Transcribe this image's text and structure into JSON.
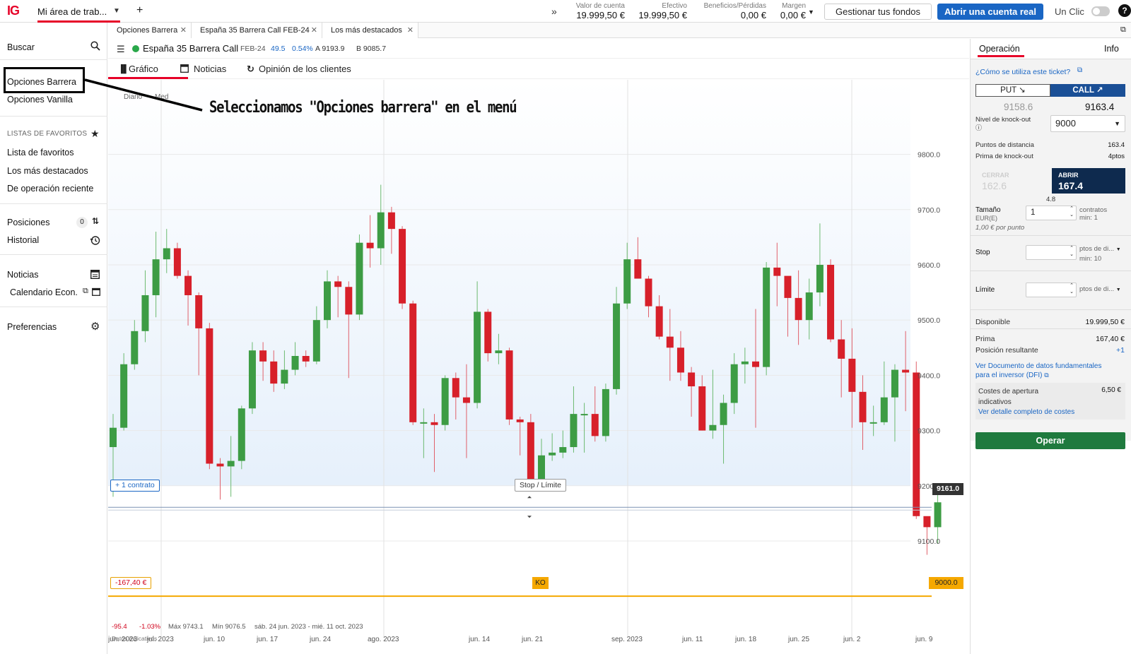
{
  "topbar": {
    "logo": "IG",
    "workspace": "Mi área de trab...",
    "stats": [
      {
        "label": "Valor de cuenta",
        "value": "19.999,50 €"
      },
      {
        "label": "Efectivo",
        "value": "19.999,50 €"
      },
      {
        "label": "Beneficios/Pérdidas",
        "value": "0,00 €"
      },
      {
        "label": "Margen",
        "value": "0,00 €"
      }
    ],
    "manage_funds": "Gestionar tus fondos",
    "open_account": "Abrir una cuenta real",
    "one_click": "Un Clic",
    "help": "?"
  },
  "sidebar": {
    "search": "Buscar",
    "barrier": "Opciones Barrera",
    "vanilla": "Opciones Vanilla",
    "favorites_header": "LISTAS DE FAVORITOS",
    "fav_list": "Lista de favoritos",
    "top": "Los más destacados",
    "recent": "De operación reciente",
    "positions": "Posiciones",
    "positions_count": "0",
    "history": "Historial",
    "news": "Noticias",
    "calendar": "Calendario Econ.",
    "prefs": "Preferencias"
  },
  "tabs": [
    {
      "label": "Opciones Barrera"
    },
    {
      "label": "España 35 Barrera Call  FEB-24"
    },
    {
      "label": "Los más destacados"
    }
  ],
  "instrument": {
    "name": "España 35 Barrera Call",
    "expiry": "FEB-24",
    "change": "49.5",
    "change_pct": "0.54%",
    "ask": "A 9193.9",
    "bid": "B 9085.7"
  },
  "subtabs": {
    "chart": "Gráfico",
    "news": "Noticias",
    "sentiment": "Opinión de los clientes"
  },
  "annotation": "Seleccionamos \"Opciones barrera\" en el menú",
  "chart_meta": {
    "interval": "Diario",
    "interval2": "Med",
    "contract_tag": "+ 1 contrato",
    "stop_limit": "Stop / Límite",
    "last_price": "9161.0",
    "ko_pnl": "-167,40 €",
    "ko": "KO",
    "ko_level": "9000.0",
    "foot_change": "-95.4",
    "foot_pct": "-1.03%",
    "foot_max": "Máx 9743.1",
    "foot_min": "Mín 9076.5",
    "foot_range": "sáb. 24 jun. 2023 - mié. 11 oct. 2023",
    "foot_note": "Datos indicativos"
  },
  "chart_data": {
    "type": "candlestick",
    "title": "",
    "y_ticks": [
      9100,
      9200,
      9300,
      9400,
      9500,
      9600,
      9700,
      9800
    ],
    "ylim": [
      8935,
      9935
    ],
    "x_ticks": [
      "jun. 2023",
      "jul. 2023",
      "jun. 10",
      "jun. 17",
      "jun. 24",
      "ago. 2023",
      "jun. 14",
      "jun. 21",
      "sep. 2023",
      "jun. 11",
      "jun. 18",
      "jun. 25",
      "jun. 2",
      "jun. 9"
    ],
    "horizontal_lines": [
      {
        "value": 9161.0,
        "label": "9161.0"
      },
      {
        "value": 9000.0,
        "label": "9000.0"
      }
    ],
    "candles": [
      [
        9270,
        9305,
        9180,
        9330
      ],
      [
        9305,
        9420,
        9300,
        9440
      ],
      [
        9420,
        9480,
        9410,
        9500
      ],
      [
        9480,
        9545,
        9460,
        9590
      ],
      [
        9545,
        9610,
        9505,
        9660
      ],
      [
        9610,
        9630,
        9585,
        9665
      ],
      [
        9630,
        9580,
        9575,
        9640
      ],
      [
        9580,
        9545,
        9490,
        9590
      ],
      [
        9545,
        9485,
        9400,
        9550
      ],
      [
        9485,
        9240,
        9230,
        9495
      ],
      [
        9240,
        9235,
        9175,
        9250
      ],
      [
        9235,
        9245,
        9180,
        9290
      ],
      [
        9245,
        9340,
        9230,
        9345
      ],
      [
        9340,
        9445,
        9330,
        9460
      ],
      [
        9445,
        9425,
        9390,
        9460
      ],
      [
        9425,
        9385,
        9370,
        9445
      ],
      [
        9385,
        9410,
        9375,
        9445
      ],
      [
        9410,
        9435,
        9400,
        9460
      ],
      [
        9435,
        9425,
        9415,
        9445
      ],
      [
        9425,
        9500,
        9420,
        9525
      ],
      [
        9500,
        9570,
        9485,
        9590
      ],
      [
        9570,
        9560,
        9505,
        9580
      ],
      [
        9560,
        9510,
        9395,
        9570
      ],
      [
        9510,
        9640,
        9500,
        9655
      ],
      [
        9640,
        9630,
        9595,
        9690
      ],
      [
        9630,
        9695,
        9600,
        9745
      ],
      [
        9695,
        9665,
        9620,
        9705
      ],
      [
        9665,
        9530,
        9520,
        9670
      ],
      [
        9530,
        9315,
        9310,
        9535
      ],
      [
        9315,
        9315,
        9250,
        9340
      ],
      [
        9315,
        9310,
        9225,
        9330
      ],
      [
        9310,
        9395,
        9300,
        9400
      ],
      [
        9395,
        9360,
        9320,
        9405
      ],
      [
        9360,
        9350,
        9250,
        9420
      ],
      [
        9350,
        9515,
        9340,
        9570
      ],
      [
        9515,
        9440,
        9425,
        9520
      ],
      [
        9440,
        9445,
        9420,
        9475
      ],
      [
        9445,
        9320,
        9310,
        9450
      ],
      [
        9320,
        9315,
        9255,
        9325
      ],
      [
        9315,
        9210,
        9200,
        9330
      ],
      [
        9210,
        9255,
        9195,
        9285
      ],
      [
        9255,
        9260,
        9245,
        9295
      ],
      [
        9260,
        9270,
        9250,
        9300
      ],
      [
        9270,
        9330,
        9260,
        9380
      ],
      [
        9330,
        9330,
        9260,
        9350
      ],
      [
        9330,
        9290,
        9280,
        9380
      ],
      [
        9290,
        9375,
        9280,
        9385
      ],
      [
        9375,
        9530,
        9365,
        9560
      ],
      [
        9530,
        9610,
        9520,
        9640
      ],
      [
        9610,
        9575,
        9575,
        9650
      ],
      [
        9575,
        9525,
        9505,
        9580
      ],
      [
        9525,
        9470,
        9465,
        9545
      ],
      [
        9470,
        9450,
        9390,
        9520
      ],
      [
        9450,
        9405,
        9390,
        9480
      ],
      [
        9405,
        9380,
        9325,
        9415
      ],
      [
        9380,
        9300,
        9300,
        9400
      ],
      [
        9300,
        9310,
        9285,
        9410
      ],
      [
        9310,
        9350,
        9240,
        9365
      ],
      [
        9350,
        9420,
        9330,
        9440
      ],
      [
        9420,
        9425,
        9385,
        9450
      ],
      [
        9425,
        9415,
        9305,
        9520
      ],
      [
        9415,
        9595,
        9400,
        9605
      ],
      [
        9595,
        9580,
        9525,
        9640
      ],
      [
        9580,
        9540,
        9470,
        9575
      ],
      [
        9540,
        9500,
        9455,
        9590
      ],
      [
        9500,
        9550,
        9465,
        9575
      ],
      [
        9550,
        9600,
        9525,
        9675
      ],
      [
        9600,
        9465,
        9460,
        9610
      ],
      [
        9465,
        9430,
        9360,
        9500
      ],
      [
        9430,
        9370,
        9305,
        9485
      ],
      [
        9370,
        9315,
        9265,
        9400
      ],
      [
        9315,
        9315,
        9290,
        9345
      ],
      [
        9315,
        9360,
        9310,
        9425
      ],
      [
        9360,
        9410,
        9280,
        9420
      ],
      [
        9410,
        9405,
        9335,
        9480
      ],
      [
        9405,
        9145,
        9140,
        9425
      ],
      [
        9145,
        9125,
        9075,
        9140
      ],
      [
        9125,
        9170,
        9095,
        9190
      ]
    ],
    "candle_format": "[open, close, low, high]"
  },
  "right_panel": {
    "tab_op": "Operación",
    "tab_info": "Info",
    "how_to": "¿Cómo se utiliza este ticket?",
    "put": "PUT",
    "call": "CALL",
    "put_price": "9158.6",
    "call_price": "9163.4",
    "ko_label": "Nivel de knock-out",
    "ko_value": "9000",
    "dist_label": "Puntos de distancia",
    "dist_value": "163.4",
    "prem_label": "Prima de knock-out",
    "prem_value": "4ptos",
    "close_label": "CERRAR",
    "close_price": "162.6",
    "open_label": "ABRIR",
    "open_price": "167.4",
    "spread": "4.8",
    "size_label": "Tamaño",
    "size_unit": "EUR(E)",
    "size_value": "1",
    "size_contracts": "contratos",
    "size_min": "min: 1",
    "per_point": "1,00 € por punto",
    "stop_label": "Stop",
    "stop_unit": "ptos de di...",
    "stop_min": "min: 10",
    "limit_label": "Límite",
    "limit_unit": "ptos de di...",
    "avail_label": "Disponible",
    "avail_value": "19.999,50 €",
    "premium_label": "Prima",
    "premium_value": "167,40 €",
    "pos_label": "Posición resultante",
    "pos_value": "+1",
    "kid_link": "Ver Documento de datos fundamentales para el inversor (DFI)",
    "costs_label": "Costes de apertura indicativos",
    "costs_value": "6,50 €",
    "costs_link": "Ver detalle completo de costes",
    "trade": "Operar"
  }
}
